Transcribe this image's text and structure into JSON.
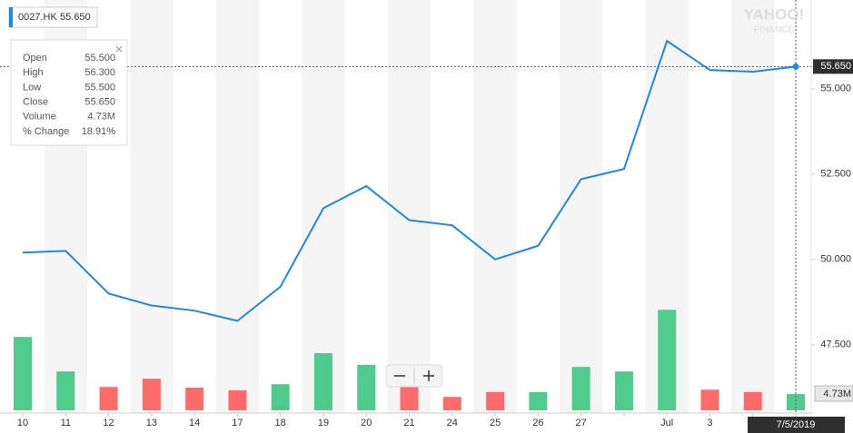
{
  "ticker": {
    "symbol": "0027.HK",
    "price": "55.650"
  },
  "watermark": {
    "brand": "YAHOO!",
    "product": "FINANCE"
  },
  "tooltip": {
    "rows": [
      [
        "Open",
        "55.500"
      ],
      [
        "High",
        "56.300"
      ],
      [
        "Low",
        "55.500"
      ],
      [
        "Close",
        "55.650"
      ],
      [
        "Volume",
        "4.73M"
      ],
      [
        "% Change",
        "18.91%"
      ]
    ]
  },
  "chart_data": {
    "type": "line",
    "categories": [
      "10",
      "11",
      "12",
      "13",
      "14",
      "17",
      "18",
      "19",
      "20",
      "21",
      "24",
      "25",
      "26",
      "27",
      null,
      "Jul",
      "3",
      null,
      null
    ],
    "values": [
      50.2,
      50.25,
      49.0,
      48.65,
      48.5,
      48.2,
      49.2,
      51.5,
      52.15,
      51.15,
      51.0,
      50.0,
      50.4,
      52.35,
      52.65,
      56.4,
      55.55,
      55.5,
      55.65
    ],
    "color": "#1e88e5",
    "ylim": [
      45.5,
      57.6
    ],
    "yticks": [
      {
        "value": 55,
        "label": "55.000"
      },
      {
        "value": 52.5,
        "label": "52.500"
      },
      {
        "value": 50,
        "label": "50.000"
      },
      {
        "value": 47.5,
        "label": "47.500"
      }
    ],
    "volume": {
      "values": [
        21.3,
        11.3,
        6.8,
        9.2,
        6.6,
        5.8,
        7.6,
        16.6,
        13.2,
        7.1,
        3.9,
        5.3,
        5.3,
        12.6,
        11.3,
        29.2,
        6.0,
        5.3,
        4.73
      ],
      "colors": [
        "#4fcb8d",
        "#4fcb8d",
        "#ff6b6b",
        "#ff6b6b",
        "#ff6b6b",
        "#ff6b6b",
        "#4fcb8d",
        "#4fcb8d",
        "#4fcb8d",
        "#ff6b6b",
        "#ff6b6b",
        "#ff6b6b",
        "#4fcb8d",
        "#4fcb8d",
        "#4fcb8d",
        "#4fcb8d",
        "#ff6b6b",
        "#ff6b6b",
        "#4fcb8d"
      ],
      "ylim": [
        0,
        120
      ]
    },
    "last_price": {
      "value": 55.65,
      "label": "55.650"
    },
    "last_volume": {
      "value": 4.73,
      "label": "4.73M"
    },
    "crosshair_date": "7/5/2019"
  }
}
